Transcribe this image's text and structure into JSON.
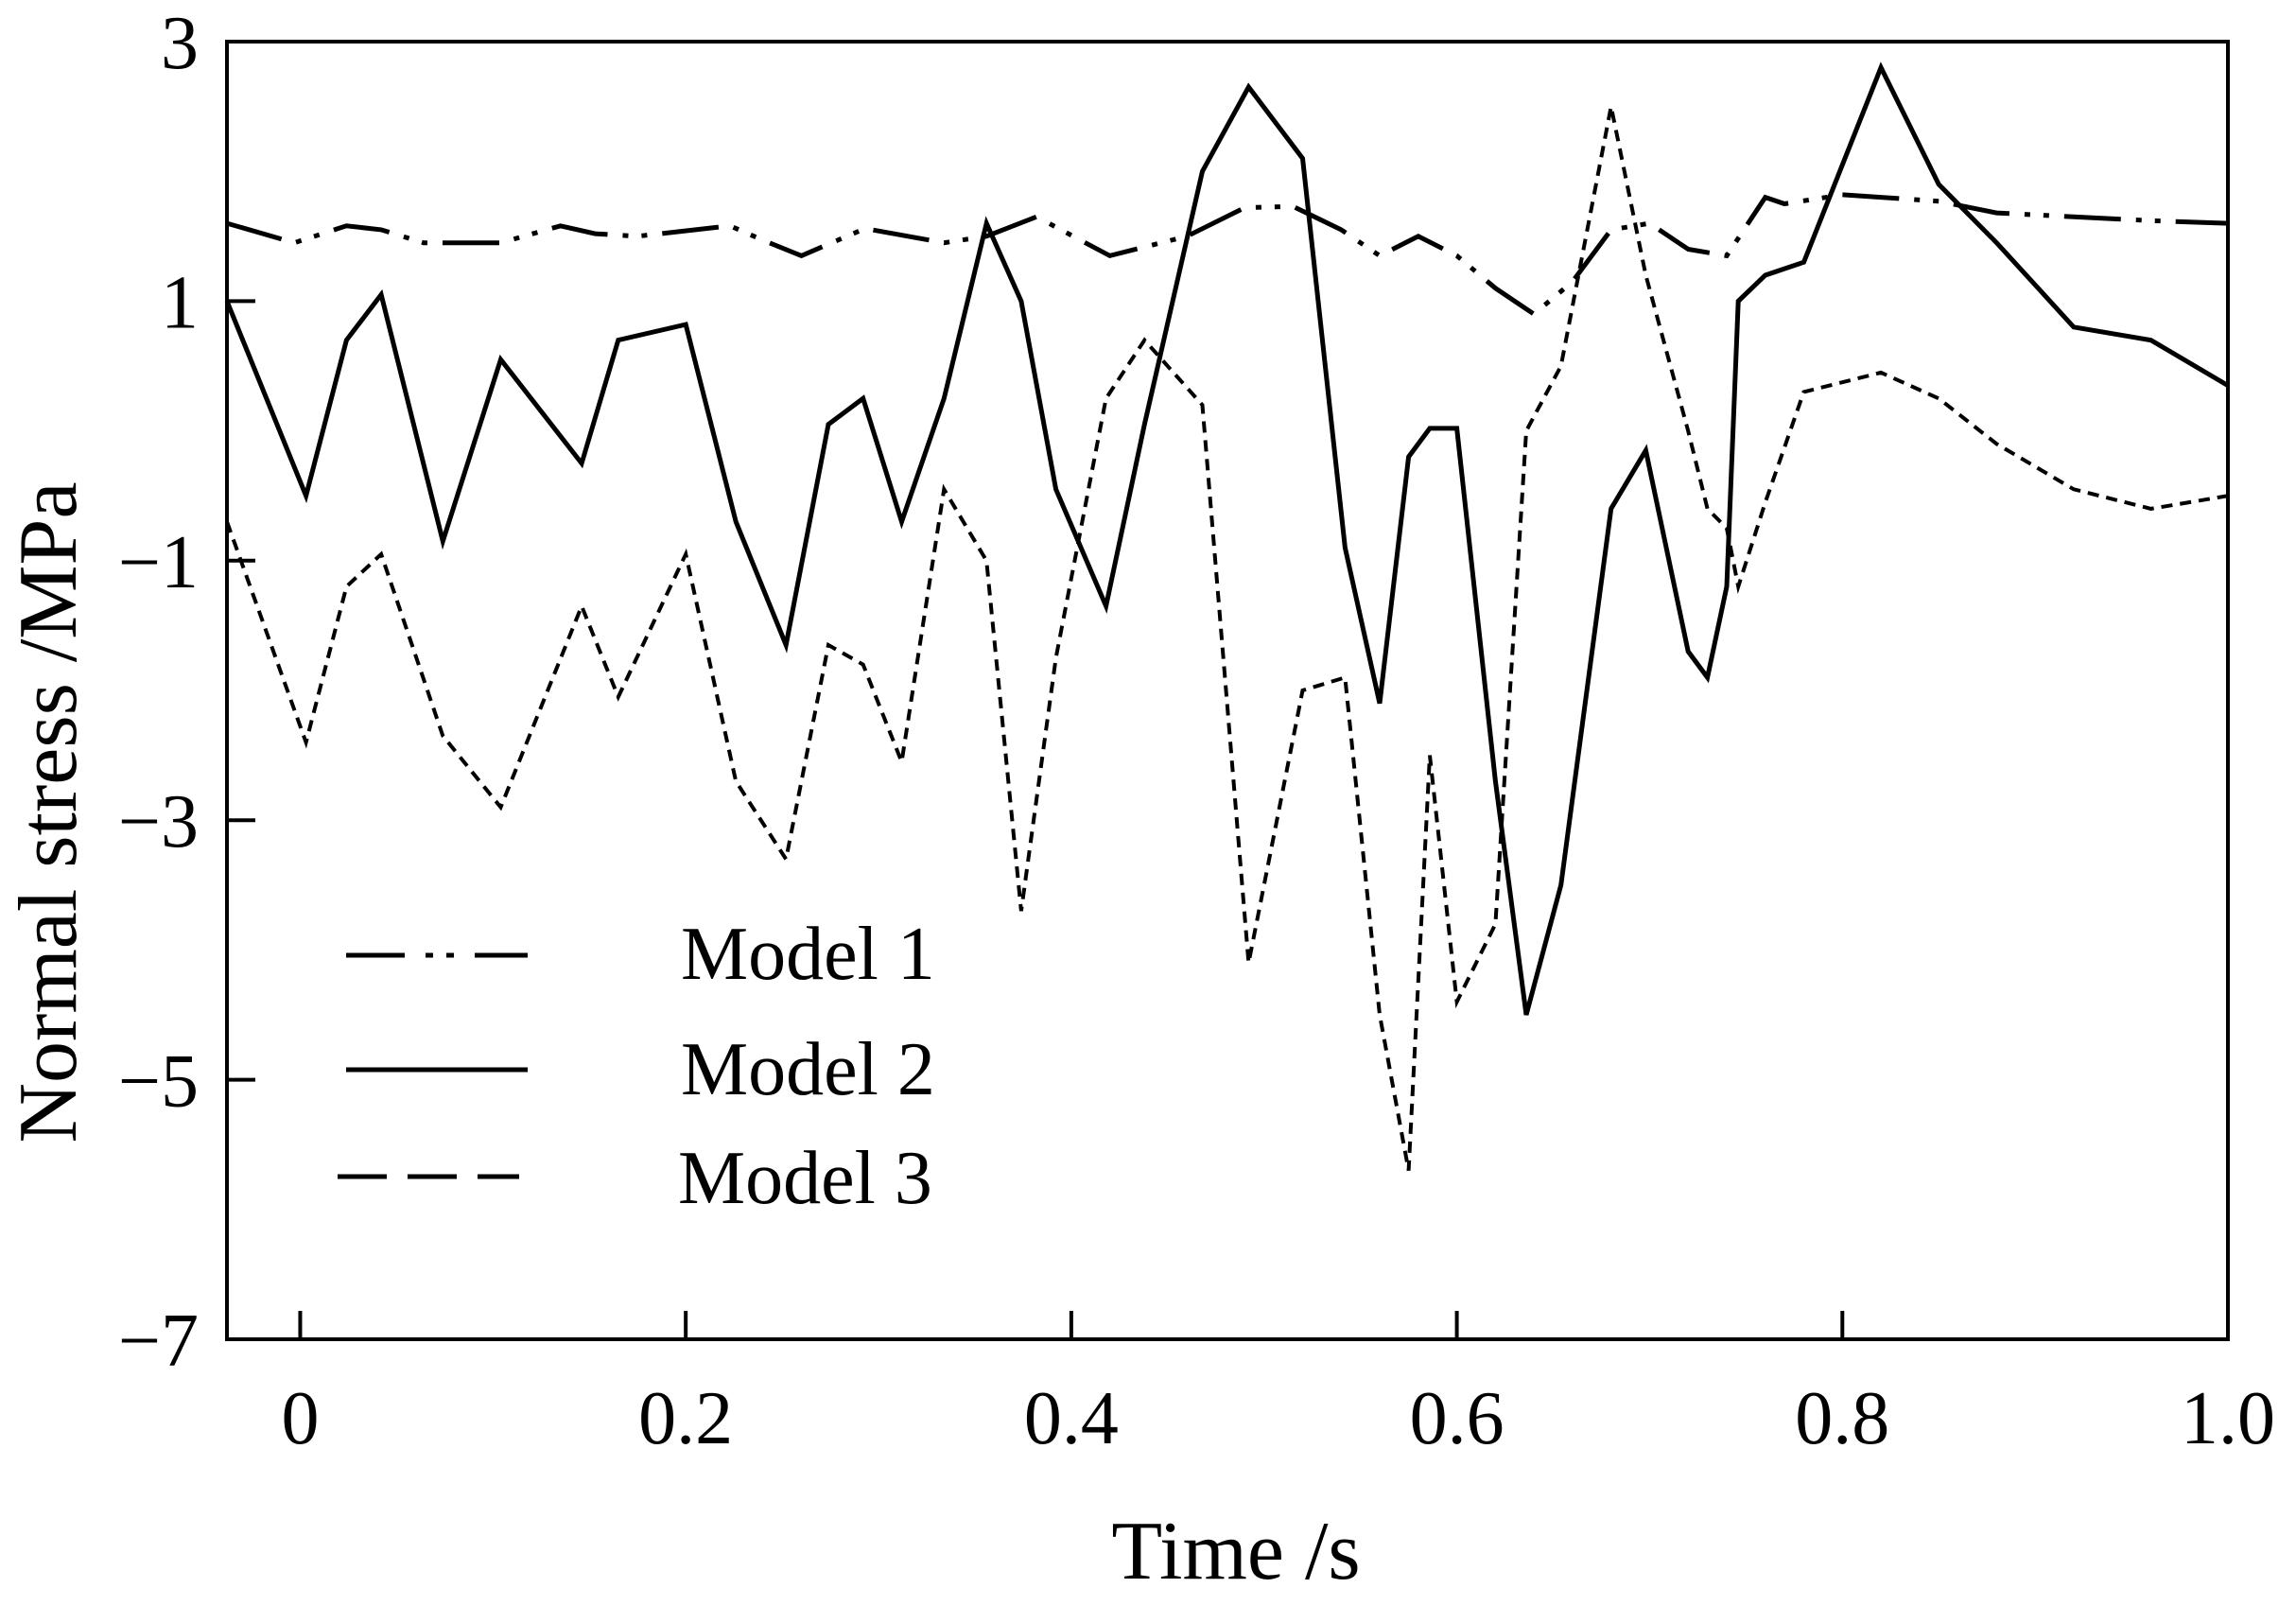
{
  "chart_data": {
    "type": "line",
    "title": "",
    "xlabel": "Time /s",
    "ylabel": "Normal stress /MPa",
    "xlim": [
      -0.038,
      1.0
    ],
    "ylim": [
      -7,
      3
    ],
    "xticks": [
      0,
      0.2,
      0.4,
      0.6,
      0.8,
      1.0
    ],
    "xtick_labels": [
      "0",
      "0.2",
      "0.4",
      "0.6",
      "0.8",
      "1.0"
    ],
    "yticks": [
      3,
      1,
      -1,
      -3,
      -5,
      -7
    ],
    "ytick_labels": [
      "3",
      "1",
      "−1",
      "−3",
      "−5",
      "−7"
    ],
    "grid": false,
    "legend_position": "bottom-left",
    "series": [
      {
        "name": "Model 1",
        "style": "dash-dot-dot",
        "x": [
          -0.038,
          -0.003,
          0.024,
          0.042,
          0.064,
          0.104,
          0.135,
          0.153,
          0.175,
          0.223,
          0.24,
          0.26,
          0.293,
          0.334,
          0.356,
          0.382,
          0.42,
          0.46,
          0.49,
          0.515,
          0.54,
          0.56,
          0.58,
          0.6,
          0.62,
          0.64,
          0.66,
          0.68,
          0.7,
          0.72,
          0.74,
          0.76,
          0.77,
          0.8,
          0.82,
          0.85,
          0.88,
          0.92,
          0.96,
          1.0
        ],
        "values": [
          1.6,
          1.45,
          1.58,
          1.55,
          1.45,
          1.45,
          1.58,
          1.52,
          1.5,
          1.58,
          1.47,
          1.35,
          1.56,
          1.45,
          1.5,
          1.65,
          1.35,
          1.5,
          1.72,
          1.73,
          1.55,
          1.35,
          1.5,
          1.35,
          1.1,
          0.9,
          1.15,
          1.55,
          1.6,
          1.4,
          1.35,
          1.8,
          1.75,
          1.82,
          1.8,
          1.77,
          1.68,
          1.65,
          1.62,
          1.6
        ]
      },
      {
        "name": "Model 2",
        "style": "solid",
        "x": [
          -0.038,
          0.003,
          0.024,
          0.042,
          0.074,
          0.104,
          0.146,
          0.165,
          0.2,
          0.226,
          0.252,
          0.274,
          0.292,
          0.312,
          0.334,
          0.356,
          0.374,
          0.392,
          0.418,
          0.438,
          0.468,
          0.492,
          0.52,
          0.542,
          0.56,
          0.575,
          0.586,
          0.6,
          0.62,
          0.636,
          0.654,
          0.68,
          0.698,
          0.72,
          0.73,
          0.74,
          0.746,
          0.76,
          0.78,
          0.82,
          0.85,
          0.88,
          0.92,
          0.96,
          1.0
        ],
        "values": [
          1.0,
          -0.5,
          0.7,
          1.05,
          -0.85,
          0.55,
          -0.25,
          0.7,
          0.82,
          -0.7,
          -1.65,
          0.05,
          0.25,
          -0.7,
          0.25,
          1.6,
          1.0,
          -0.45,
          -1.35,
          0.05,
          2.0,
          2.65,
          2.1,
          -0.9,
          -2.1,
          -0.2,
          0.02,
          0.02,
          -2.7,
          -4.5,
          -3.5,
          -0.6,
          -0.15,
          -1.7,
          -1.9,
          -1.2,
          1.0,
          1.2,
          1.3,
          2.8,
          1.9,
          1.45,
          0.8,
          0.7,
          0.35
        ]
      },
      {
        "name": "Model 3",
        "style": "dashed",
        "x": [
          -0.038,
          0.003,
          0.024,
          0.042,
          0.074,
          0.104,
          0.146,
          0.165,
          0.2,
          0.226,
          0.252,
          0.274,
          0.292,
          0.312,
          0.334,
          0.356,
          0.374,
          0.392,
          0.418,
          0.438,
          0.468,
          0.492,
          0.52,
          0.542,
          0.56,
          0.575,
          0.586,
          0.6,
          0.62,
          0.636,
          0.654,
          0.68,
          0.698,
          0.72,
          0.73,
          0.74,
          0.746,
          0.76,
          0.78,
          0.82,
          0.85,
          0.88,
          0.92,
          0.96,
          1.0
        ],
        "values": [
          -0.7,
          -2.4,
          -1.2,
          -0.95,
          -2.35,
          -2.9,
          -1.35,
          -2.05,
          -0.95,
          -2.7,
          -3.3,
          -1.65,
          -1.8,
          -2.55,
          -0.45,
          -1.0,
          -3.7,
          -1.75,
          0.25,
          0.7,
          0.2,
          -4.1,
          -2.0,
          -1.9,
          -4.5,
          -5.7,
          -2.5,
          -4.4,
          -3.8,
          0.0,
          0.5,
          2.5,
          1.2,
          0.0,
          -0.6,
          -0.75,
          -1.2,
          -0.55,
          0.3,
          0.45,
          0.25,
          -0.1,
          -0.45,
          -0.6,
          -0.5
        ]
      }
    ]
  }
}
